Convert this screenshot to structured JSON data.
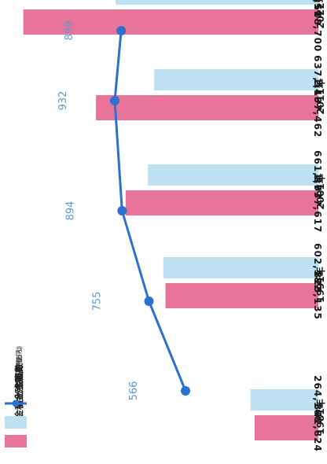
{
  "chart_data": {
    "type": "bar",
    "categories": [
      "1981年",
      "1991年",
      "2001年",
      "2011年",
      "2022年"
    ],
    "series": [
      {
        "name": "預金積金残高",
        "unit": "(億円)",
        "values": [
          342824,
          823135,
          1037617,
          1197462,
          1588700
        ],
        "labels": [
          "342,824",
          "823,135",
          "1,037,617",
          "1,197,462",
          "1,588,700"
        ],
        "color": "#e8749a"
      },
      {
        "name": "貸出金残高",
        "unit": "(億円)",
        "values": [
          264168,
          602582,
          661877,
          637546,
          788011
        ],
        "labels": [
          "264,168",
          "602,582",
          "661,877",
          "637,546",
          "788,011"
        ],
        "color": "#bde1f2"
      },
      {
        "name": "会員数",
        "unit": "(万人)",
        "type": "line",
        "values": [
          566,
          755,
          894,
          932,
          899
        ],
        "labels": [
          "566",
          "755",
          "894",
          "932",
          "899"
        ],
        "color": "#2c70d0"
      }
    ],
    "orientation": "horizontal, rotated 90° (years read along the right edge)",
    "legend_position": "bottom-left"
  }
}
